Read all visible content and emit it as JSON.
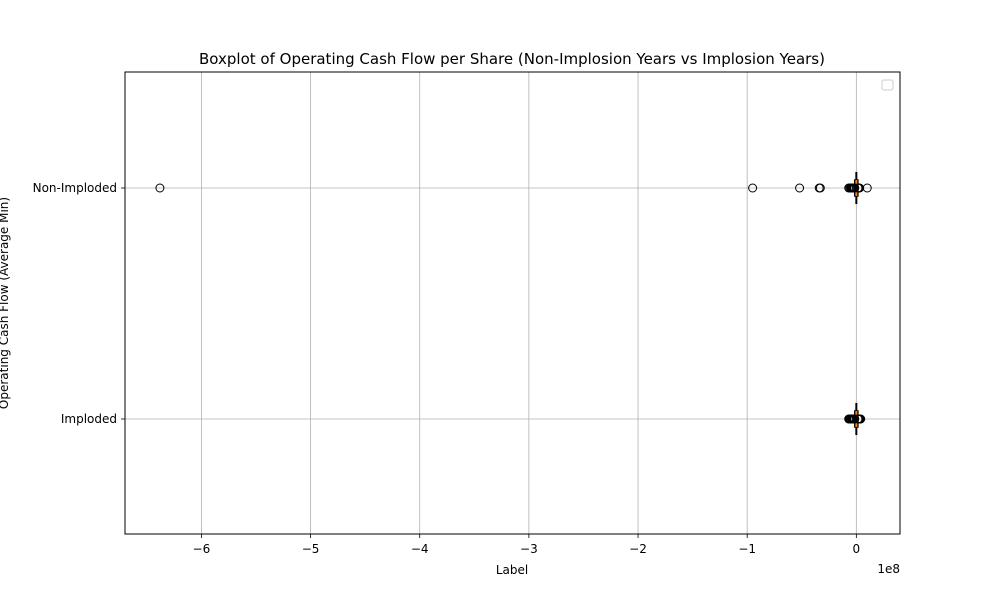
{
  "chart_data": {
    "type": "boxplot",
    "orientation": "horizontal",
    "title": "Boxplot of Operating Cash Flow per Share (Non-Implosion Years vs Implosion Years)",
    "xlabel": "Label",
    "ylabel": "Operating Cash Flow (Average Min)",
    "x_scale_label": "1e8",
    "xlim": [
      -6.7,
      0.4
    ],
    "x_ticks": [
      -6,
      -5,
      -4,
      -3,
      -2,
      -1,
      0
    ],
    "x_tick_labels": [
      "−6",
      "−5",
      "−4",
      "−3",
      "−2",
      "−1",
      "0"
    ],
    "grid": true,
    "legend": "top-right (empty)",
    "categories": [
      "Imploded",
      "Non-Imploded"
    ],
    "series": [
      {
        "category": "Imploded",
        "median": 0,
        "q1": -0.005,
        "q3": 0.005,
        "whisker_low": -0.012,
        "whisker_high": 0.012,
        "outliers": [
          -0.07,
          -0.065,
          -0.06,
          -0.055,
          -0.05,
          -0.045,
          -0.04,
          -0.035,
          -0.03,
          -0.025,
          -0.02,
          -0.017,
          -0.015,
          0.015,
          0.02,
          0.025,
          0.03,
          0.035,
          0.04
        ]
      },
      {
        "category": "Non-Imploded",
        "median": 0,
        "q1": -0.005,
        "q3": 0.005,
        "whisker_low": -0.012,
        "whisker_high": 0.012,
        "outliers": [
          -6.38,
          -0.95,
          -0.52,
          -0.34,
          -0.33,
          -0.07,
          -0.06,
          -0.05,
          -0.045,
          -0.04,
          -0.035,
          -0.03,
          -0.025,
          -0.02,
          -0.015,
          0.015,
          0.02,
          0.025,
          0.03,
          0.1
        ]
      }
    ],
    "colors": {
      "median": "#ff7f0e",
      "box": "#000000",
      "grid": "#b0b0b0",
      "flier_edge": "#000000"
    }
  }
}
